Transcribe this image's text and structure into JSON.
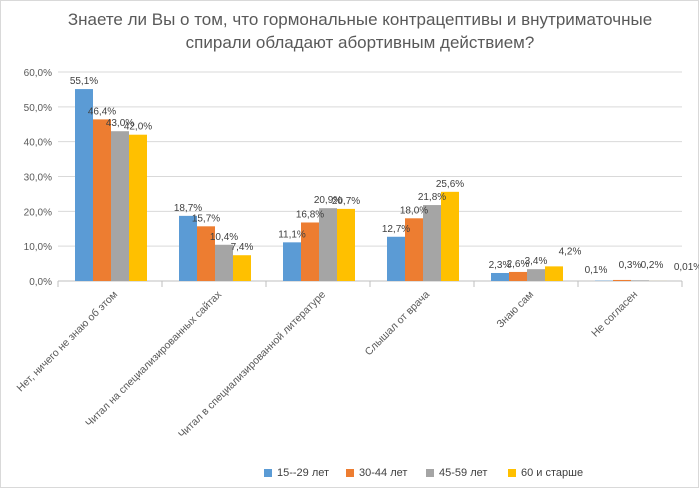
{
  "chart_data": {
    "type": "bar",
    "title": "Знаете ли Вы о том, что гормональные контрацептивы и внутриматочные спирали обладают абортивным действием?",
    "categories": [
      "Нет, ничего не знаю об этом",
      "Читал на специализированных сайтах",
      "Читал в специализированной литературе",
      "Слышал от врача",
      "Знаю сам",
      "Не согласен"
    ],
    "series": [
      {
        "name": "15--29 лет",
        "color": "#5b9bd5",
        "values": [
          55.1,
          18.7,
          11.1,
          12.7,
          2.3,
          0.1
        ],
        "labels": [
          "55,1%",
          "18,7%",
          "11,1%",
          "12,7%",
          "2,3%",
          "0,1%"
        ]
      },
      {
        "name": "30-44 лет",
        "color": "#ed7d31",
        "values": [
          46.4,
          15.7,
          16.8,
          18.0,
          2.6,
          0.3
        ],
        "labels": [
          "46,4%",
          "15,7%",
          "16,8%",
          "18,0%",
          "2,6%",
          "0,3%"
        ]
      },
      {
        "name": "45-59 лет",
        "color": "#a5a5a5",
        "values": [
          43.0,
          10.4,
          20.9,
          21.8,
          3.4,
          0.2
        ],
        "labels": [
          "43,0%",
          "10,4%",
          "20,9%",
          "21,8%",
          "3,4%",
          "0,2%"
        ]
      },
      {
        "name": "60 и старше",
        "color": "#ffc000",
        "values": [
          42.0,
          7.4,
          20.7,
          25.6,
          4.2,
          0.01
        ],
        "labels": [
          "42,0%",
          "7,4%",
          "20,7%",
          "25,6%",
          "4,2%",
          "0,01%"
        ]
      }
    ],
    "ylim": [
      0,
      60
    ],
    "yticks": [
      "0,0%",
      "10,0%",
      "20,0%",
      "30,0%",
      "40,0%",
      "50,0%",
      "60,0%"
    ],
    "grid": true,
    "legend_position": "bottom-right"
  }
}
